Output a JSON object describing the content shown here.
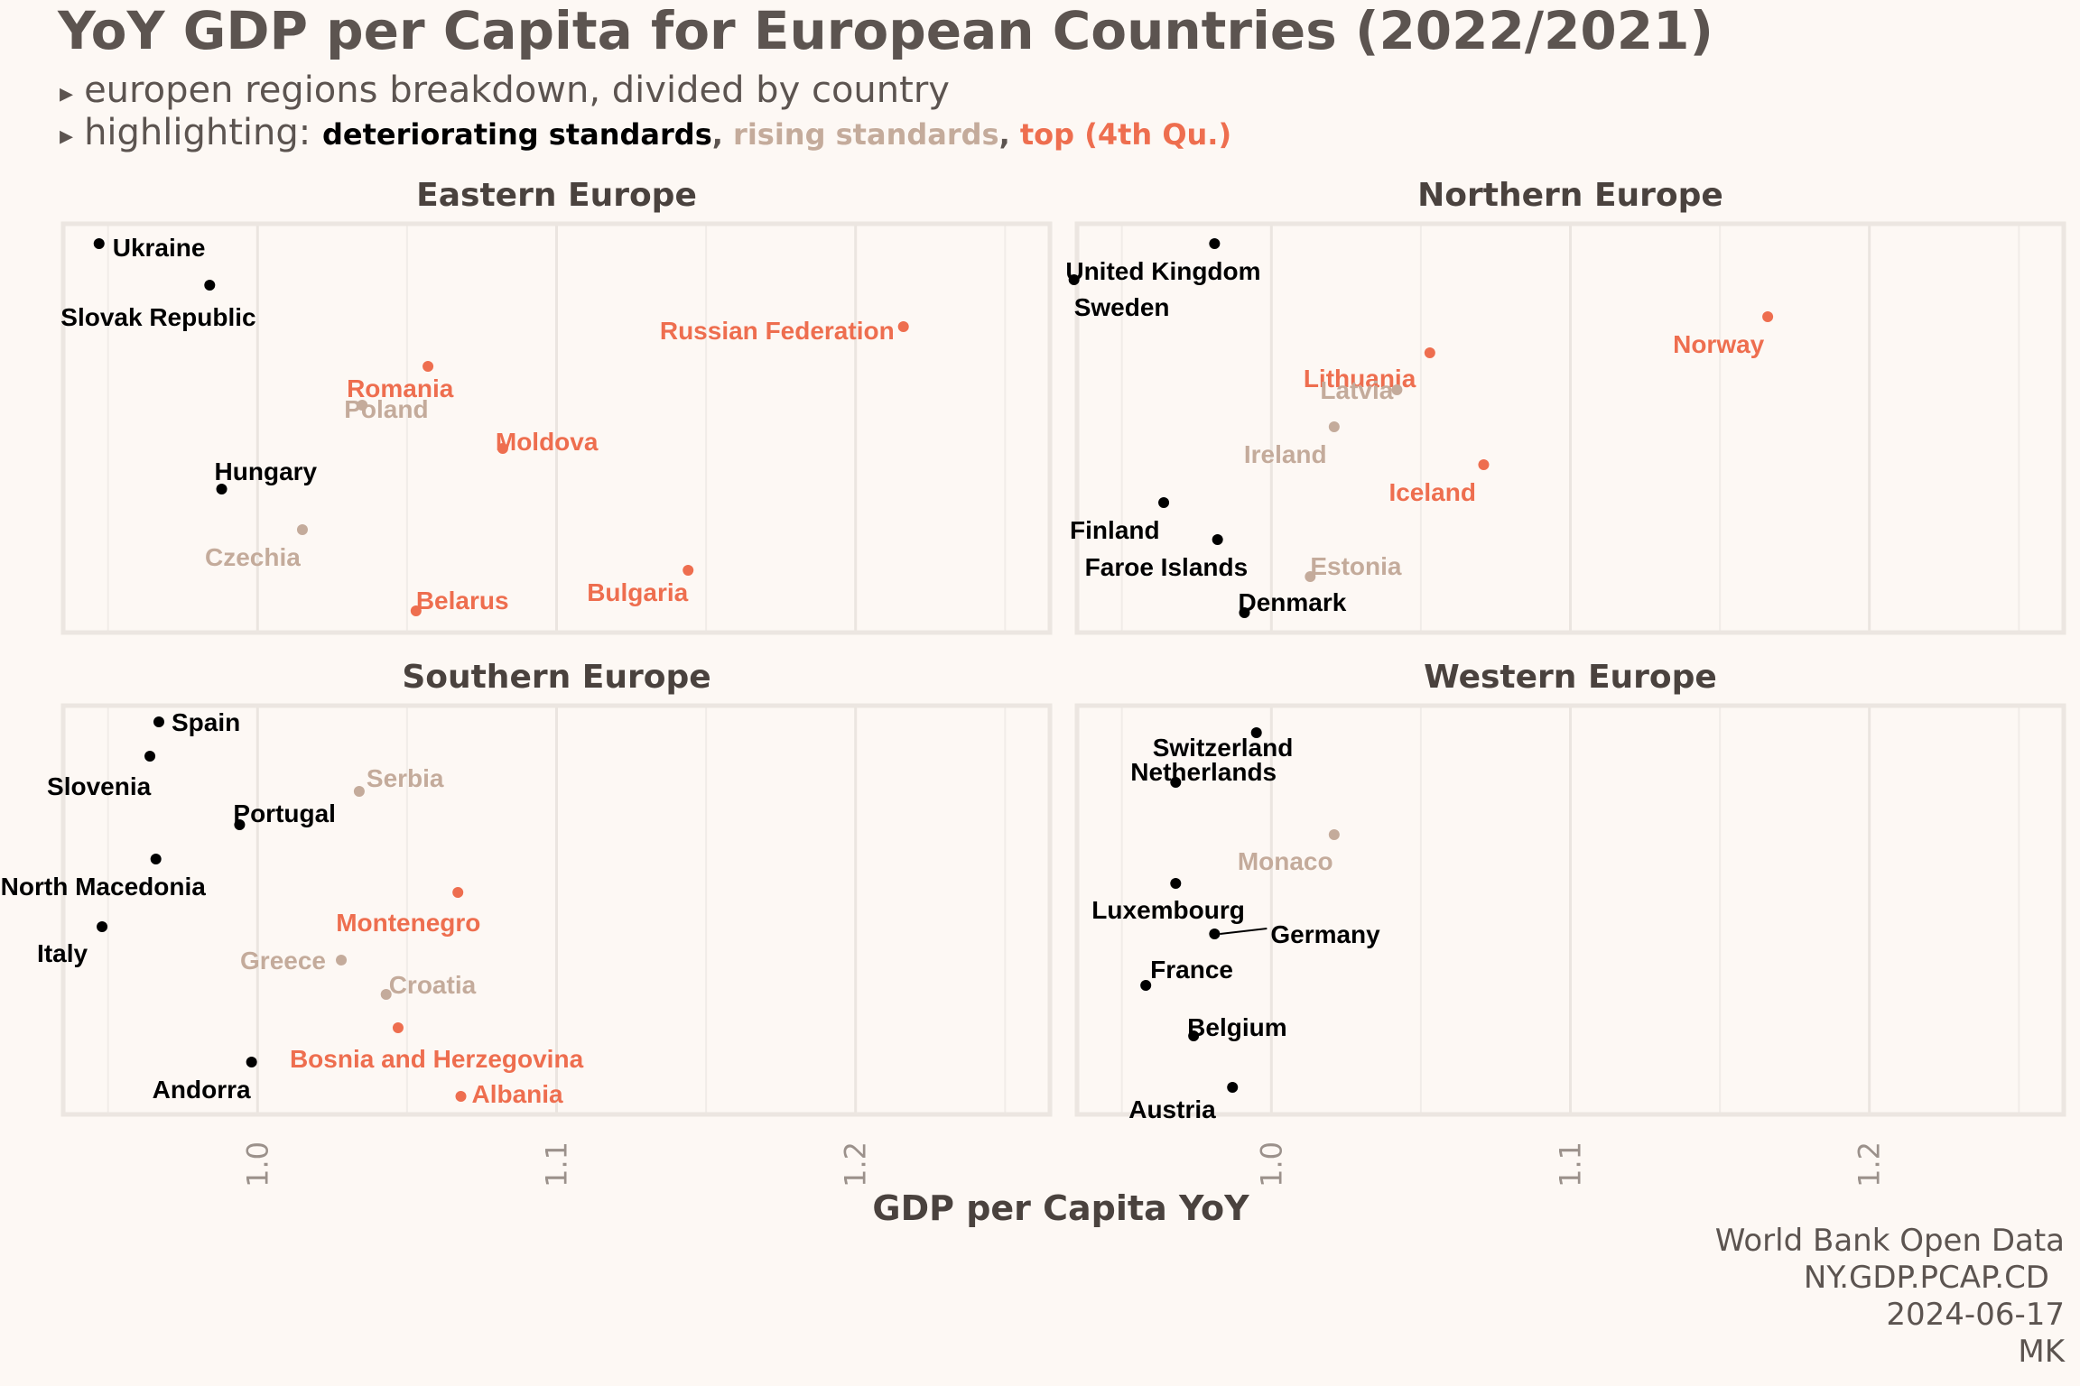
{
  "title": "YoY GDP per Capita for European Countries (2022/2021)",
  "subtitle_line1": "europen regions breakdown, divided by country",
  "subtitle_line2_prefix": "highlighting: ",
  "legend": [
    {
      "label": "deteriorating standards",
      "color": "#000000"
    },
    {
      "label": "rising standards",
      "color": "#c4ab9b"
    },
    {
      "label": "top (4th Qu.)",
      "color": "#ee6e4f"
    }
  ],
  "bullet": "▸",
  "caption": [
    "World Bank Open Data",
    "NY.GDP.PCAP.CD",
    "2024-06-17",
    "MK"
  ],
  "colors": {
    "deteriorating": "#000000",
    "rising": "#c4ab9b",
    "top": "#ee6e4f",
    "background": "#fdf8f4"
  },
  "chart_data": {
    "type": "scatter",
    "xlabel": "GDP per Capita YoY",
    "ylabel": "",
    "xlim": [
      0.935,
      1.265
    ],
    "xticks": [
      1.0,
      1.1,
      1.2
    ],
    "xtick_labels": [
      "1.0",
      "1.1",
      "1.2"
    ],
    "grid": true,
    "panels": [
      {
        "title": "Eastern Europe",
        "points": [
          {
            "name": "Ukraine",
            "x": 0.947,
            "cat": "deteriorating"
          },
          {
            "name": "Slovak Republic",
            "x": 0.984,
            "cat": "deteriorating"
          },
          {
            "name": "Russian Federation",
            "x": 1.216,
            "cat": "top"
          },
          {
            "name": "Romania",
            "x": 1.057,
            "cat": "top"
          },
          {
            "name": "Poland",
            "x": 1.035,
            "cat": "rising"
          },
          {
            "name": "Moldova",
            "x": 1.082,
            "cat": "top"
          },
          {
            "name": "Hungary",
            "x": 0.988,
            "cat": "deteriorating"
          },
          {
            "name": "Czechia",
            "x": 1.015,
            "cat": "rising"
          },
          {
            "name": "Bulgaria",
            "x": 1.144,
            "cat": "top"
          },
          {
            "name": "Belarus",
            "x": 1.053,
            "cat": "top"
          }
        ]
      },
      {
        "title": "Northern Europe",
        "points": [
          {
            "name": "United Kingdom",
            "x": 0.981,
            "cat": "deteriorating"
          },
          {
            "name": "Sweden",
            "x": 0.934,
            "cat": "deteriorating"
          },
          {
            "name": "Norway",
            "x": 1.166,
            "cat": "top"
          },
          {
            "name": "Lithuania",
            "x": 1.053,
            "cat": "top"
          },
          {
            "name": "Latvia",
            "x": 1.042,
            "cat": "rising"
          },
          {
            "name": "Ireland",
            "x": 1.021,
            "cat": "rising"
          },
          {
            "name": "Iceland",
            "x": 1.071,
            "cat": "top"
          },
          {
            "name": "Finland",
            "x": 0.964,
            "cat": "deteriorating"
          },
          {
            "name": "Faroe Islands",
            "x": 0.982,
            "cat": "deteriorating"
          },
          {
            "name": "Estonia",
            "x": 1.013,
            "cat": "rising"
          },
          {
            "name": "Denmark",
            "x": 0.991,
            "cat": "deteriorating"
          }
        ]
      },
      {
        "title": "Southern Europe",
        "points": [
          {
            "name": "Spain",
            "x": 0.967,
            "cat": "deteriorating"
          },
          {
            "name": "Slovenia",
            "x": 0.964,
            "cat": "deteriorating"
          },
          {
            "name": "Serbia",
            "x": 1.034,
            "cat": "rising"
          },
          {
            "name": "Portugal",
            "x": 0.994,
            "cat": "deteriorating"
          },
          {
            "name": "North Macedonia",
            "x": 0.966,
            "cat": "deteriorating"
          },
          {
            "name": "Montenegro",
            "x": 1.067,
            "cat": "top"
          },
          {
            "name": "Italy",
            "x": 0.948,
            "cat": "deteriorating"
          },
          {
            "name": "Greece",
            "x": 1.028,
            "cat": "rising"
          },
          {
            "name": "Croatia",
            "x": 1.043,
            "cat": "rising"
          },
          {
            "name": "Bosnia and Herzegovina",
            "x": 1.047,
            "cat": "top"
          },
          {
            "name": "Andorra",
            "x": 0.998,
            "cat": "deteriorating"
          },
          {
            "name": "Albania",
            "x": 1.068,
            "cat": "top"
          }
        ]
      },
      {
        "title": "Western Europe",
        "points": [
          {
            "name": "Switzerland",
            "x": 0.995,
            "cat": "deteriorating"
          },
          {
            "name": "Netherlands",
            "x": 0.968,
            "cat": "deteriorating"
          },
          {
            "name": "Monaco",
            "x": 1.021,
            "cat": "rising"
          },
          {
            "name": "Luxembourg",
            "x": 0.968,
            "cat": "deteriorating"
          },
          {
            "name": "Germany",
            "x": 0.981,
            "cat": "deteriorating"
          },
          {
            "name": "France",
            "x": 0.958,
            "cat": "deteriorating"
          },
          {
            "name": "Belgium",
            "x": 0.974,
            "cat": "deteriorating"
          },
          {
            "name": "Austria",
            "x": 0.987,
            "cat": "deteriorating"
          }
        ]
      }
    ]
  }
}
